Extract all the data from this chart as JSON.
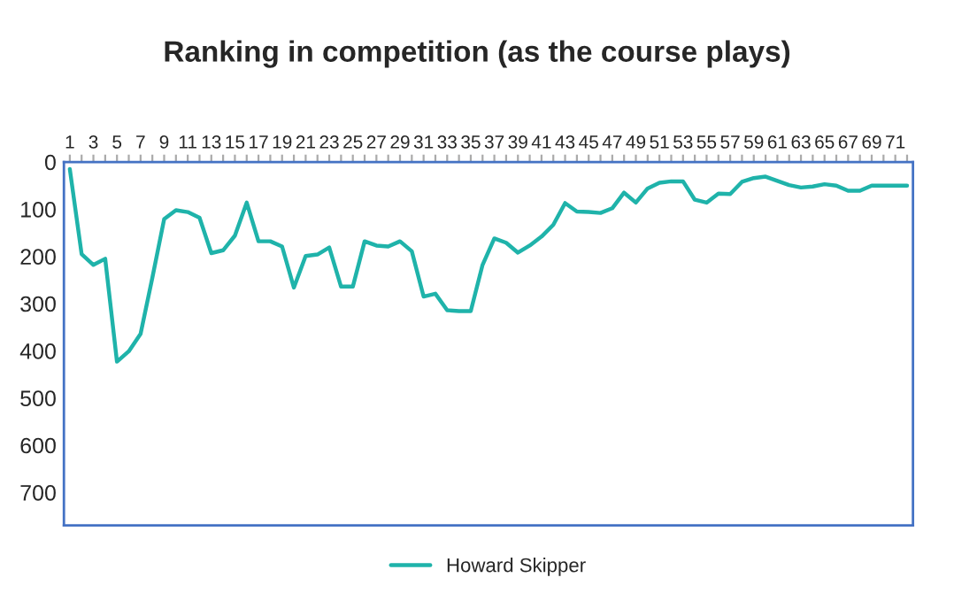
{
  "chart_data": {
    "type": "line",
    "title": "Ranking in competition (as the course plays)",
    "categories": [
      "1",
      null,
      "3",
      null,
      "5",
      null,
      "7",
      null,
      "9",
      null,
      "11",
      null,
      "13",
      null,
      "15",
      null,
      "17",
      null,
      "19",
      null,
      "21",
      null,
      "23",
      null,
      "25",
      null,
      "27",
      null,
      "29",
      null,
      "31",
      null,
      "33",
      null,
      "35",
      null,
      "37",
      null,
      "39",
      null,
      "41",
      null,
      "43",
      null,
      "45",
      null,
      "47",
      null,
      "49",
      null,
      "51",
      null,
      "53",
      null,
      "55",
      null,
      "57",
      null,
      "59",
      null,
      "61",
      null,
      "63",
      null,
      "65",
      null,
      "67",
      null,
      "69",
      null,
      "71",
      null
    ],
    "series": [
      {
        "name": "Howard Skipper",
        "color": "#1fb3aa",
        "values": [
          15,
          195,
          218,
          205,
          423,
          401,
          364,
          245,
          121,
          102,
          106,
          118,
          193,
          187,
          156,
          86,
          168,
          168,
          179,
          266,
          199,
          196,
          181,
          264,
          264,
          168,
          177,
          179,
          168,
          189,
          285,
          279,
          314,
          316,
          316,
          218,
          162,
          171,
          192,
          177,
          158,
          133,
          87,
          105,
          106,
          108,
          98,
          65,
          86,
          56,
          44,
          41,
          41,
          80,
          86,
          67,
          68,
          42,
          34,
          31,
          40,
          49,
          54,
          52,
          47,
          50,
          61,
          61,
          50,
          50,
          50,
          50
        ]
      }
    ],
    "ylim": [
      770,
      0
    ],
    "yticks": [
      0,
      100,
      200,
      300,
      400,
      500,
      600,
      700
    ],
    "grid": false,
    "legend": "bottom",
    "marker": "none",
    "line_style": "solid"
  }
}
